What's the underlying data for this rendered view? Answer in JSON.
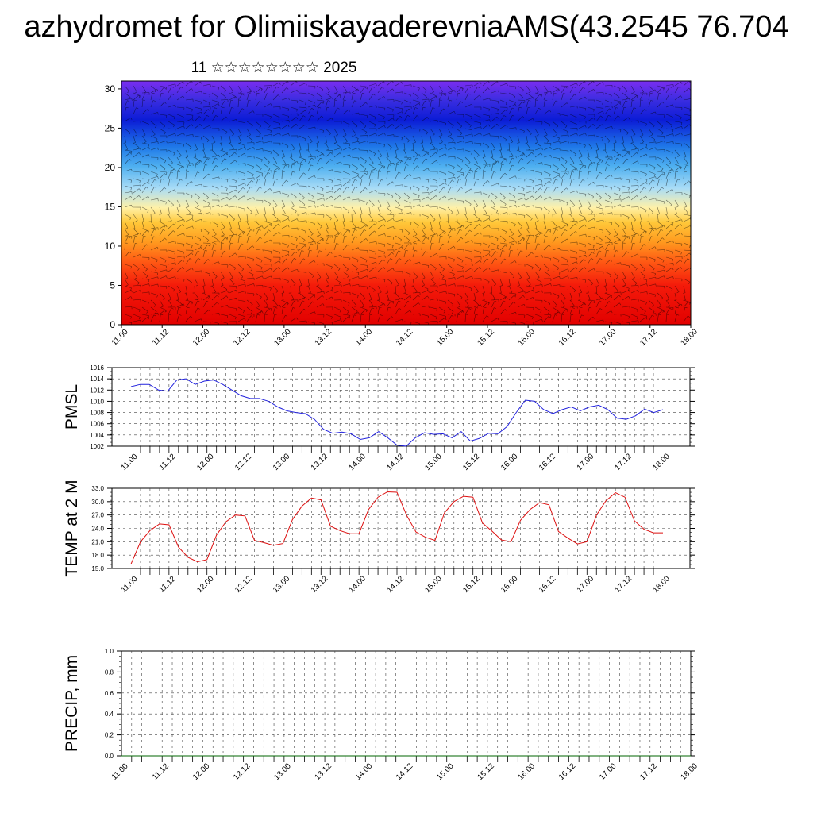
{
  "title": "azhydromet for OlimiiskayaderevniaAMS(43.2545 76.704",
  "subtitle": "11 ☆☆☆☆☆☆☆☆ 2025",
  "date_ticks": [
    "11.00",
    "11.12",
    "12.00",
    "12.12",
    "13.00",
    "13.12",
    "14.00",
    "14.12",
    "15.00",
    "15.12",
    "16.00",
    "16.12",
    "17.00",
    "17.12",
    "18.00"
  ],
  "chart_data": [
    {
      "type": "heatmap",
      "title": "",
      "xlabel": "",
      "ylabel": "",
      "x": [
        "11.00",
        "11.12",
        "12.00",
        "12.12",
        "13.00",
        "13.12",
        "14.00",
        "14.12",
        "15.00",
        "15.12",
        "16.00",
        "16.12",
        "17.00",
        "17.12",
        "18.00"
      ],
      "ylim": [
        0,
        31
      ],
      "yticks": [
        0,
        5,
        10,
        15,
        20,
        25,
        30
      ],
      "colormap_top_to_bottom": [
        "#7a2df0",
        "#3a2de0",
        "#0b1cd6",
        "#1f78e8",
        "#4fb0f0",
        "#a9dcf6",
        "#fff1a8",
        "#ffc83a",
        "#ff9a1f",
        "#ff5a14",
        "#f41a0a",
        "#e20000"
      ],
      "overlay": "wind barbs"
    },
    {
      "type": "line",
      "ylabel": "PMSL",
      "ylim": [
        1002,
        1016
      ],
      "yticks": [
        1002,
        1004,
        1006,
        1008,
        1010,
        1012,
        1014,
        1016
      ],
      "color": "#2222dd",
      "series": [
        {
          "values": [
            1012.6,
            1013,
            1013,
            1012,
            1011.8,
            1013.8,
            1014,
            1013,
            1013.6,
            1013.8,
            1013,
            1012,
            1011,
            1010.5,
            1010.5,
            1010,
            1009,
            1008.3,
            1008,
            1007.8,
            1006.8,
            1005,
            1004.3,
            1004.5,
            1004.2,
            1003.2,
            1003.5,
            1004.6,
            1003.5,
            1002.2,
            1002,
            1003.5,
            1004.4,
            1004.1,
            1004.2,
            1003.5,
            1004.6,
            1002.9,
            1003.4,
            1004.3,
            1004.2,
            1005.5,
            1008,
            1010.2,
            1010,
            1008.5,
            1007.8,
            1008.5,
            1009,
            1008.3,
            1009,
            1009.3,
            1008.5,
            1007,
            1006.8,
            1007.4,
            1008.6,
            1008,
            1008.5
          ]
        }
      ]
    },
    {
      "type": "line",
      "ylabel": "TEMP at 2 M",
      "ylim": [
        15,
        33
      ],
      "yticks": [
        15.0,
        18.0,
        21.0,
        24.0,
        27.0,
        30.0,
        33.0
      ],
      "color": "#dd1111",
      "series": [
        {
          "values": [
            16,
            21,
            23.5,
            25,
            24.8,
            19.8,
            17.5,
            16.5,
            17,
            22.5,
            25.5,
            27,
            26.8,
            21.3,
            20.8,
            20.2,
            20.6,
            26,
            29,
            30.8,
            30.4,
            24.5,
            23.5,
            22.8,
            22.8,
            28.2,
            31,
            32.2,
            32.1,
            27,
            23.2,
            22,
            21.3,
            27.5,
            30,
            31.2,
            31,
            25.2,
            23.4,
            21.4,
            21,
            25.8,
            28.2,
            29.8,
            29.3,
            23.3,
            21.8,
            20.5,
            21,
            27,
            30.2,
            32,
            31,
            25.7,
            23.8,
            23,
            23
          ]
        }
      ]
    },
    {
      "type": "line",
      "ylabel": "PRECIP, mm",
      "ylim": [
        0.0,
        1.0
      ],
      "yticks": [
        0.0,
        0.2,
        0.4,
        0.6,
        0.8,
        1.0
      ],
      "color": "#006600",
      "series": [
        {
          "values": [
            0,
            0,
            0,
            0,
            0,
            0,
            0,
            0,
            0,
            0,
            0,
            0,
            0,
            0,
            0,
            0,
            0,
            0,
            0,
            0,
            0,
            0,
            0,
            0,
            0,
            0,
            0,
            0,
            0,
            0,
            0,
            0,
            0,
            0,
            0,
            0,
            0,
            0,
            0,
            0,
            0,
            0,
            0,
            0,
            0,
            0,
            0,
            0,
            0,
            0,
            0,
            0,
            0,
            0,
            0,
            0,
            0,
            0
          ]
        }
      ]
    }
  ]
}
